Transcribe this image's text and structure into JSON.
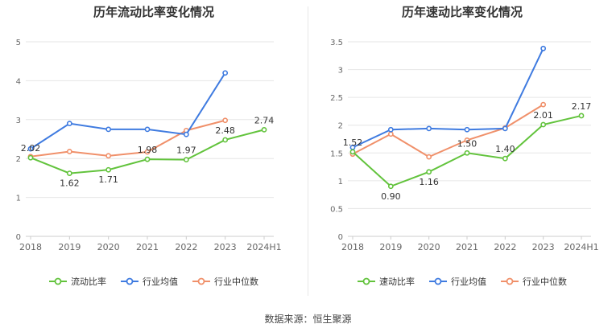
{
  "source_text": "数据来源：恒生聚源",
  "colors": {
    "green": "#62c33c",
    "blue": "#3f7be0",
    "orange": "#f0906a",
    "axis_text": "#666666",
    "grid": "#e6e6e6"
  },
  "chart_data": [
    {
      "type": "line",
      "title": "历年流动比率变化情况",
      "categories": [
        "2018",
        "2019",
        "2020",
        "2021",
        "2022",
        "2023",
        "2024H1"
      ],
      "ylim": [
        0,
        5
      ],
      "yticks": [
        0,
        1,
        2,
        3,
        4,
        5
      ],
      "ytick_labels": [
        "0",
        "1",
        "2",
        "3",
        "4",
        "5"
      ],
      "grid": true,
      "legend_position": "bottom",
      "series": [
        {
          "name": "流动比率",
          "color": "#62c33c",
          "values": [
            2.02,
            1.62,
            1.71,
            1.98,
            1.97,
            2.48,
            2.74
          ],
          "labels": [
            "2.02",
            "1.62",
            "1.71",
            "1.98",
            "1.97",
            "2.48",
            "2.74"
          ],
          "label_pos": [
            "above",
            "below",
            "below",
            "above",
            "above",
            "above",
            "above"
          ]
        },
        {
          "name": "行业均值",
          "color": "#3f7be0",
          "values": [
            2.25,
            2.9,
            2.75,
            2.75,
            2.62,
            4.2,
            null
          ]
        },
        {
          "name": "行业中位数",
          "color": "#f0906a",
          "values": [
            2.05,
            2.18,
            2.07,
            2.17,
            2.72,
            2.98,
            null
          ]
        }
      ]
    },
    {
      "type": "line",
      "title": "历年速动比率变化情况",
      "categories": [
        "2018",
        "2019",
        "2020",
        "2021",
        "2022",
        "2023",
        "2024H1"
      ],
      "ylim": [
        0,
        3.5
      ],
      "yticks": [
        0,
        0.5,
        1,
        1.5,
        2,
        2.5,
        3,
        3.5
      ],
      "ytick_labels": [
        "0",
        "0.5",
        "1",
        "1.5",
        "2",
        "2.5",
        "3",
        "3.5"
      ],
      "grid": true,
      "legend_position": "bottom",
      "series": [
        {
          "name": "速动比率",
          "color": "#62c33c",
          "values": [
            1.52,
            0.9,
            1.16,
            1.5,
            1.4,
            2.01,
            2.17
          ],
          "labels": [
            "1.52",
            "0.90",
            "1.16",
            "1.50",
            "1.40",
            "2.01",
            "2.17"
          ],
          "label_pos": [
            "above",
            "below",
            "below",
            "above",
            "above",
            "above",
            "above"
          ]
        },
        {
          "name": "行业均值",
          "color": "#3f7be0",
          "values": [
            1.6,
            1.92,
            1.94,
            1.92,
            1.94,
            3.38,
            null
          ]
        },
        {
          "name": "行业中位数",
          "color": "#f0906a",
          "values": [
            1.48,
            1.84,
            1.43,
            1.73,
            1.95,
            2.37,
            null
          ]
        }
      ]
    }
  ]
}
